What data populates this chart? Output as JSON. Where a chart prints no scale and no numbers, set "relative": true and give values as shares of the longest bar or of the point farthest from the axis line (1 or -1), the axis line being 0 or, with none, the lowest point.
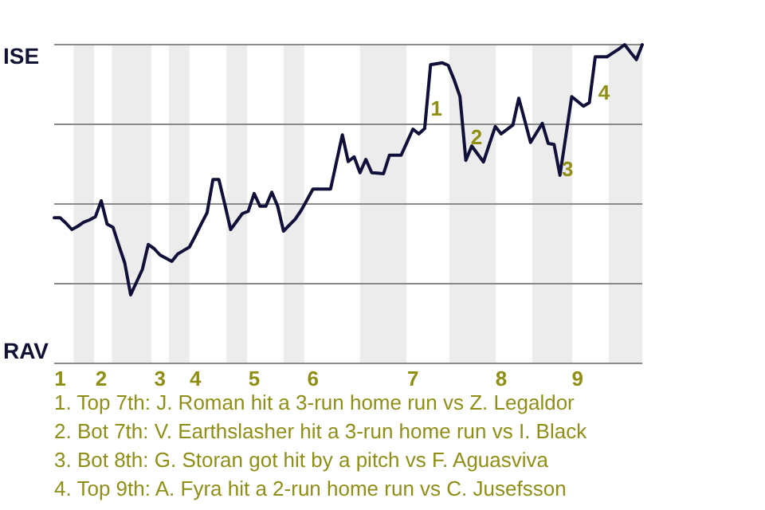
{
  "chart_data": {
    "type": "line",
    "relative": true,
    "categories": [
      null,
      "1",
      null,
      null,
      null,
      null,
      null,
      null,
      "2",
      null,
      null,
      null,
      null,
      null,
      null,
      null,
      null,
      null,
      "3",
      null,
      null,
      null,
      null,
      null,
      "4",
      null,
      null,
      null,
      null,
      null,
      null,
      null,
      null,
      null,
      "5",
      null,
      null,
      null,
      null,
      null,
      null,
      null,
      null,
      null,
      "6",
      null,
      null,
      null,
      null,
      null,
      null,
      null,
      null,
      null,
      null,
      null,
      null,
      null,
      null,
      null,
      null,
      "7",
      null,
      null,
      null,
      null,
      null,
      null,
      null,
      null,
      null,
      null,
      null,
      null,
      null,
      null,
      "8",
      null,
      null,
      null,
      null,
      null,
      null,
      null,
      null,
      null,
      null,
      null,
      null,
      "9",
      null,
      null,
      null,
      null,
      null,
      null,
      null,
      null,
      null,
      null,
      null
    ],
    "series": [
      {
        "color": "#10103a",
        "values": [
          0.457,
          0.457,
          0.44,
          0.42,
          0.43,
          0.443,
          0.45,
          0.46,
          0.51,
          0.437,
          0.427,
          0.37,
          0.315,
          0.215,
          0.255,
          0.295,
          0.373,
          0.36,
          0.34,
          0.33,
          0.32,
          0.343,
          0.354,
          0.365,
          0.4,
          0.437,
          0.473,
          0.577,
          0.577,
          0.5,
          0.42,
          0.445,
          0.47,
          0.477,
          0.533,
          0.493,
          0.493,
          0.537,
          0.493,
          0.415,
          0.434,
          0.453,
          0.48,
          0.513,
          0.547,
          0.547,
          0.547,
          0.547,
          0.632,
          0.717,
          0.633,
          0.648,
          0.598,
          0.64,
          0.598,
          0.597,
          0.595,
          0.653,
          0.653,
          0.653,
          0.694,
          0.735,
          0.72,
          0.737,
          0.937,
          0.94,
          0.943,
          0.935,
          0.89,
          0.837,
          0.637,
          0.682,
          0.657,
          0.632,
          0.688,
          0.743,
          0.72,
          0.734,
          0.748,
          0.832,
          0.763,
          0.693,
          0.723,
          0.753,
          0.69,
          0.687,
          0.59,
          0.713,
          0.837,
          0.822,
          0.807,
          0.818,
          0.962,
          0.962,
          0.962,
          0.974,
          0.986,
          1,
          0.976,
          0.953,
          1
        ]
      }
    ],
    "grid": "y",
    "marker": "none",
    "line_style": "solid",
    "annotations": [
      "ISE",
      "RAV",
      "1",
      "2",
      "3",
      "4",
      "1. Top 7th: J. Roman hit a 3-run home run vs Z. Legaldor",
      "2. Bot 7th: V. Earthslasher hit a 3-run home run vs I. Black",
      "3. Bot 8th: G. Storan got hit by a pitch vs F. Aguasviva",
      "4. Top 9th: A. Fyra hit a 2-run home run vs C. Jusefsson"
    ]
  }
}
